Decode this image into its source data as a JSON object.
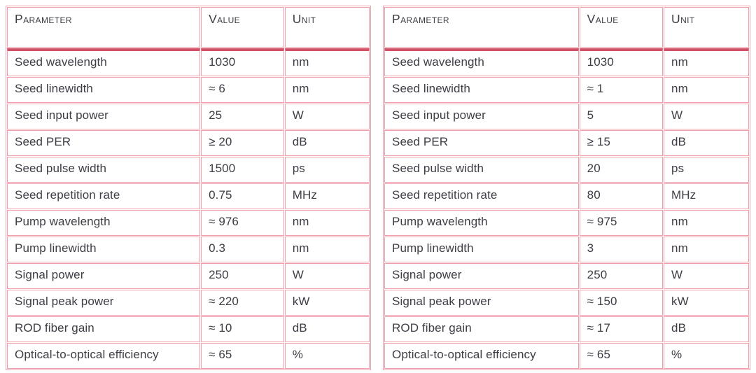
{
  "colors": {
    "border_pink": "#efa0ab",
    "header_rule_red": "#d15266",
    "text": "#3d3d46",
    "background": "#ffffff"
  },
  "tables": [
    {
      "name": "left-spec-table",
      "headers": [
        "Parameter",
        "Value",
        "Unit"
      ],
      "rows": [
        [
          "Seed wavelength",
          "1030",
          "nm"
        ],
        [
          "Seed linewidth",
          "≈ 6",
          "nm"
        ],
        [
          "Seed input power",
          "25",
          "W"
        ],
        [
          "Seed PER",
          "≥ 20",
          "dB"
        ],
        [
          "Seed pulse width",
          "1500",
          "ps"
        ],
        [
          "Seed repetition rate",
          "0.75",
          "MHz"
        ],
        [
          "Pump wavelength",
          "≈ 976",
          "nm"
        ],
        [
          "Pump linewidth",
          "0.3",
          "nm"
        ],
        [
          "Signal power",
          "250",
          "W"
        ],
        [
          "Signal peak power",
          "≈ 220",
          "kW"
        ],
        [
          "ROD fiber gain",
          "≈ 10",
          "dB"
        ],
        [
          "Optical-to-optical efficiency",
          "≈ 65",
          "%"
        ]
      ]
    },
    {
      "name": "right-spec-table",
      "headers": [
        "Parameter",
        "Value",
        "Unit"
      ],
      "rows": [
        [
          "Seed wavelength",
          "1030",
          "nm"
        ],
        [
          "Seed linewidth",
          "≈ 1",
          "nm"
        ],
        [
          "Seed input power",
          "5",
          "W"
        ],
        [
          "Seed PER",
          "≥ 15",
          "dB"
        ],
        [
          "Seed pulse width",
          "20",
          "ps"
        ],
        [
          "Seed repetition rate",
          "80",
          "MHz"
        ],
        [
          "Pump wavelength",
          "≈ 975",
          "nm"
        ],
        [
          "Pump linewidth",
          "3",
          "nm"
        ],
        [
          "Signal power",
          "250",
          "W"
        ],
        [
          "Signal peak power",
          "≈ 150",
          "kW"
        ],
        [
          "ROD fiber gain",
          "≈ 17",
          "dB"
        ],
        [
          "Optical-to-optical efficiency",
          "≈ 65",
          "%"
        ]
      ]
    }
  ]
}
